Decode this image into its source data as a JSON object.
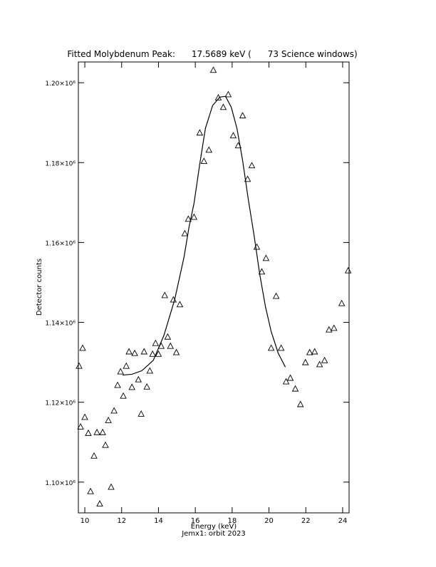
{
  "chart_data": {
    "type": "scatter",
    "title": "Fitted Molybdenum Peak:      17.5689 keV (      73 Science windows)",
    "x_label": "Energy (keV)",
    "subtitle": "Jemx1: orbit 2023",
    "y_label": "Detector counts",
    "xlim": [
      9.65,
      24.35
    ],
    "ylim": [
      1092300,
      1205200
    ],
    "xticks": [
      10,
      12,
      14,
      16,
      18,
      20,
      22,
      24
    ],
    "yticks": [
      {
        "value": 1100000,
        "label": "1.10×10⁶"
      },
      {
        "value": 1120000,
        "label": "1.12×10⁶"
      },
      {
        "value": 1140000,
        "label": "1.14×10⁶"
      },
      {
        "value": 1160000,
        "label": "1.16×10⁶"
      },
      {
        "value": 1180000,
        "label": "1.18×10⁶"
      },
      {
        "value": 1200000,
        "label": "1.20×10⁶"
      }
    ],
    "series": [
      {
        "marker": "triangle",
        "color": "#000000",
        "x": [
          9.69,
          9.77,
          9.88,
          10.0,
          10.19,
          10.31,
          10.5,
          10.66,
          10.81,
          10.97,
          11.12,
          11.28,
          11.43,
          11.59,
          11.78,
          11.94,
          12.09,
          12.25,
          12.4,
          12.56,
          12.71,
          12.91,
          13.06,
          13.22,
          13.37,
          13.53,
          13.68,
          13.84,
          14.0,
          14.15,
          14.34,
          14.5,
          14.65,
          14.81,
          14.97,
          15.16,
          15.43,
          15.62,
          15.93,
          16.24,
          16.47,
          16.74,
          16.98,
          17.25,
          17.52,
          17.79,
          18.06,
          18.33,
          18.57,
          18.84,
          19.07,
          19.34,
          19.61,
          19.84,
          20.12,
          20.39,
          20.66,
          20.93,
          21.16,
          21.43,
          21.71,
          21.98,
          22.21,
          22.48,
          22.75,
          23.02,
          23.26,
          23.53,
          23.95,
          24.3
        ],
        "values": [
          1129100,
          1113900,
          1133600,
          1116300,
          1112300,
          1097700,
          1106600,
          1112500,
          1094600,
          1112500,
          1109300,
          1115500,
          1098800,
          1117900,
          1124300,
          1127700,
          1121600,
          1129100,
          1132700,
          1123800,
          1132300,
          1125700,
          1117100,
          1132700,
          1123900,
          1127900,
          1132100,
          1134800,
          1132100,
          1134100,
          1146800,
          1136400,
          1134100,
          1145700,
          1132500,
          1144500,
          1162300,
          1165900,
          1166400,
          1187500,
          1180400,
          1183200,
          1203200,
          1196300,
          1193900,
          1197100,
          1186800,
          1184300,
          1191800,
          1175900,
          1179300,
          1158900,
          1152700,
          1156100,
          1133600,
          1146600,
          1133600,
          1125200,
          1126100,
          1123400,
          1119500,
          1130000,
          1132500,
          1132700,
          1129500,
          1130500,
          1138200,
          1138600,
          1144800,
          1153000
        ]
      },
      {
        "marker": "line",
        "color": "#000000",
        "x": [
          12.05,
          12.56,
          13.1,
          13.72,
          14.3,
          14.88,
          15.39,
          15.66,
          15.93,
          16.24,
          16.55,
          16.94,
          17.33,
          17.64,
          17.95,
          18.26,
          18.57,
          18.88,
          19.19,
          19.5,
          19.81,
          20.12,
          20.5,
          20.89
        ],
        "values": [
          1126800,
          1127000,
          1127900,
          1130500,
          1136800,
          1145700,
          1156400,
          1163900,
          1169800,
          1179600,
          1188600,
          1194300,
          1196400,
          1196600,
          1193900,
          1188600,
          1180500,
          1170700,
          1161800,
          1152000,
          1143900,
          1137700,
          1132300,
          1128800
        ]
      }
    ]
  }
}
